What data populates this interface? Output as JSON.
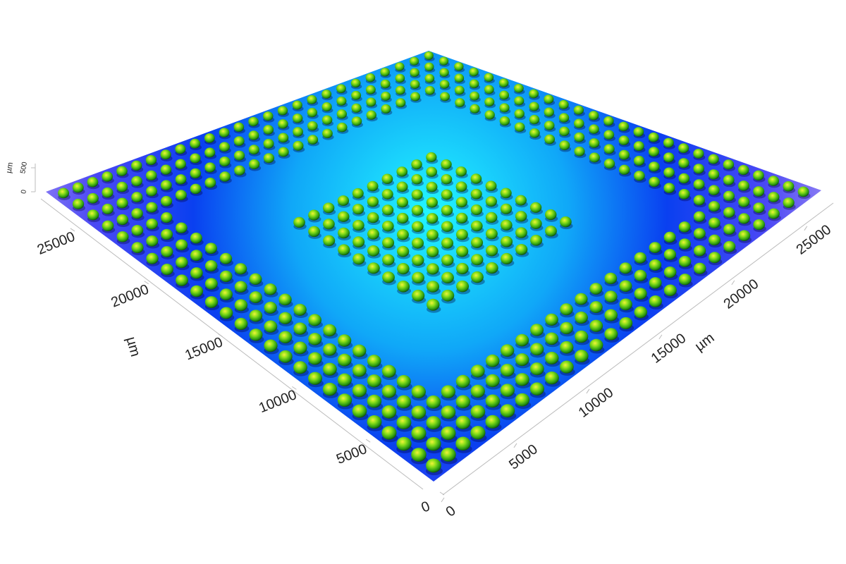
{
  "chart_data": {
    "type": "surface",
    "xlabel": "µm",
    "ylabel": "µm",
    "zlabel": "µm",
    "xlim": [
      0,
      27000
    ],
    "ylim": [
      0,
      27000
    ],
    "zlim": [
      0,
      500
    ],
    "xticks": [
      0,
      5000,
      10000,
      15000,
      20000,
      25000
    ],
    "yticks": [
      0,
      5000,
      10000,
      15000,
      20000,
      25000
    ],
    "zticks": [
      0,
      500
    ]
  }
}
